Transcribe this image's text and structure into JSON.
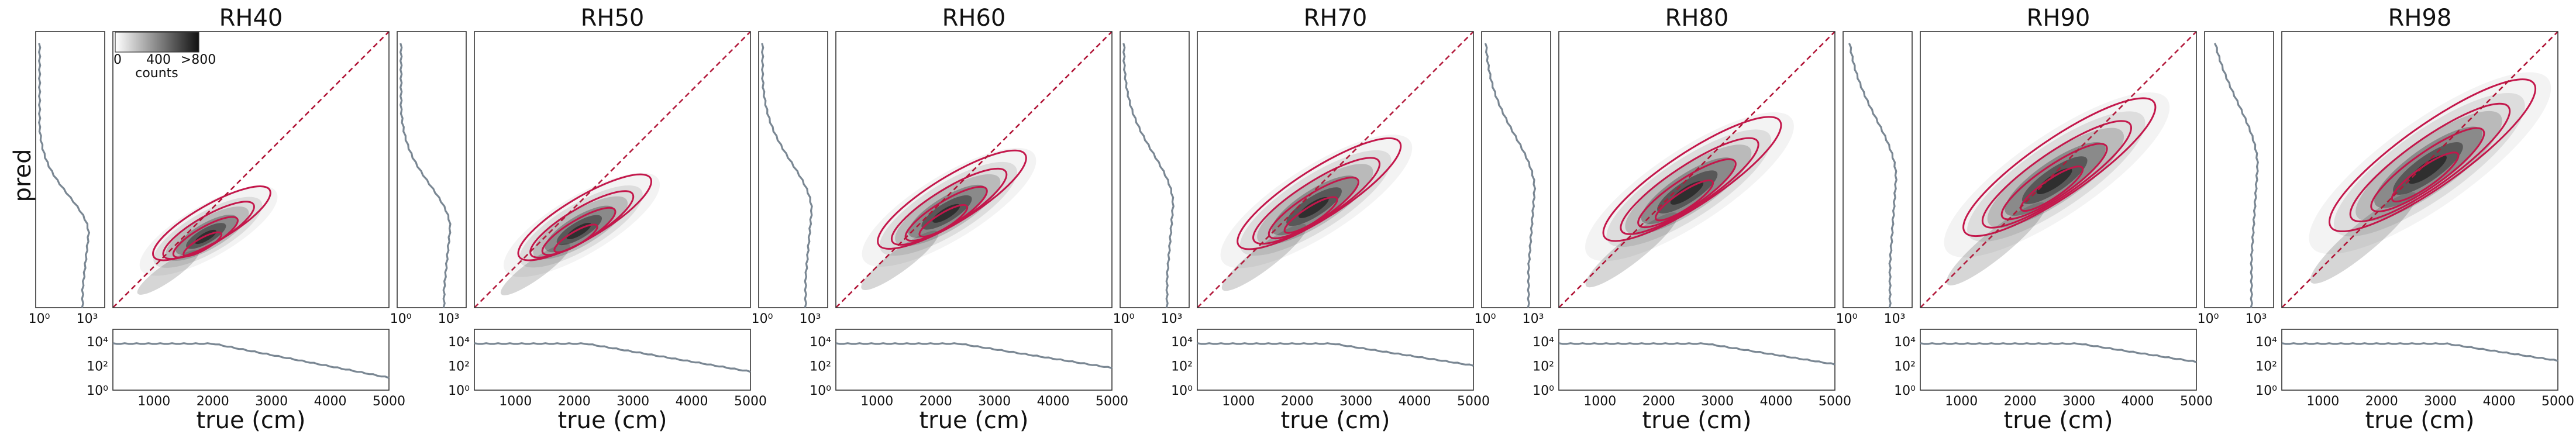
{
  "colorbar": {
    "ticks": [
      "0",
      "400",
      ">800"
    ],
    "label": "counts",
    "colors": {
      "low": "#ffffff",
      "high": "#111111"
    }
  },
  "shared_labels": {
    "ylabel": "pred",
    "xlabel": "true (cm)",
    "side_x_ticks": [
      "10⁰",
      "10³"
    ],
    "bottom_y_ticks": [
      "10⁴",
      "10²",
      "10⁰"
    ],
    "bottom_x_ticks": [
      "1000",
      "2000",
      "3000",
      "4000",
      "5000"
    ]
  },
  "colors": {
    "contour": "#c3174b",
    "diagonal": "#b2183a",
    "histogram": "#7a8793"
  },
  "chart_data": [
    {
      "type": "heatmap",
      "title": "RH40",
      "xlabel": "true (cm)",
      "ylabel": "pred",
      "xlim": [
        300,
        5000
      ],
      "ylim": [
        300,
        5000
      ],
      "density_center": [
        1900,
        1550
      ],
      "spread": [
        700,
        420
      ],
      "elongation": 0.55,
      "bottom_hist_drop_start": 2000,
      "bottom_hist_end_log": 1.0
    },
    {
      "type": "heatmap",
      "title": "RH50",
      "xlabel": "true (cm)",
      "xlim": [
        300,
        5000
      ],
      "ylim": [
        300,
        5000
      ],
      "density_center": [
        2100,
        1650
      ],
      "spread": [
        800,
        470
      ],
      "elongation": 0.6,
      "bottom_hist_drop_start": 2200,
      "bottom_hist_end_log": 1.5
    },
    {
      "type": "heatmap",
      "title": "RH60",
      "xlabel": "true (cm)",
      "xlim": [
        300,
        5000
      ],
      "ylim": [
        300,
        5000
      ],
      "density_center": [
        2200,
        1950
      ],
      "spread": [
        900,
        520
      ],
      "elongation": 0.65,
      "bottom_hist_drop_start": 2400,
      "bottom_hist_end_log": 1.8
    },
    {
      "type": "heatmap",
      "title": "RH70",
      "xlabel": "true (cm)",
      "xlim": [
        300,
        5000
      ],
      "ylim": [
        300,
        5000
      ],
      "density_center": [
        2300,
        2050
      ],
      "spread": [
        1000,
        560
      ],
      "elongation": 0.7,
      "bottom_hist_drop_start": 2600,
      "bottom_hist_end_log": 2.0
    },
    {
      "type": "heatmap",
      "title": "RH80",
      "xlabel": "true (cm)",
      "xlim": [
        300,
        5000
      ],
      "ylim": [
        300,
        5000
      ],
      "density_center": [
        2500,
        2300
      ],
      "spread": [
        1100,
        600
      ],
      "elongation": 0.75,
      "bottom_hist_drop_start": 2800,
      "bottom_hist_end_log": 2.1
    },
    {
      "type": "heatmap",
      "title": "RH90",
      "xlabel": "true (cm)",
      "xlim": [
        300,
        5000
      ],
      "ylim": [
        300,
        5000
      ],
      "density_center": [
        2600,
        2500
      ],
      "spread": [
        1200,
        650
      ],
      "elongation": 0.8,
      "bottom_hist_drop_start": 3000,
      "bottom_hist_end_log": 2.3
    },
    {
      "type": "heatmap",
      "title": "RH98",
      "xlabel": "true (cm)",
      "xlim": [
        300,
        5000
      ],
      "ylim": [
        300,
        5000
      ],
      "density_center": [
        2800,
        2700
      ],
      "spread": [
        1300,
        700
      ],
      "elongation": 0.85,
      "bottom_hist_drop_start": 3100,
      "bottom_hist_end_log": 2.4
    }
  ]
}
